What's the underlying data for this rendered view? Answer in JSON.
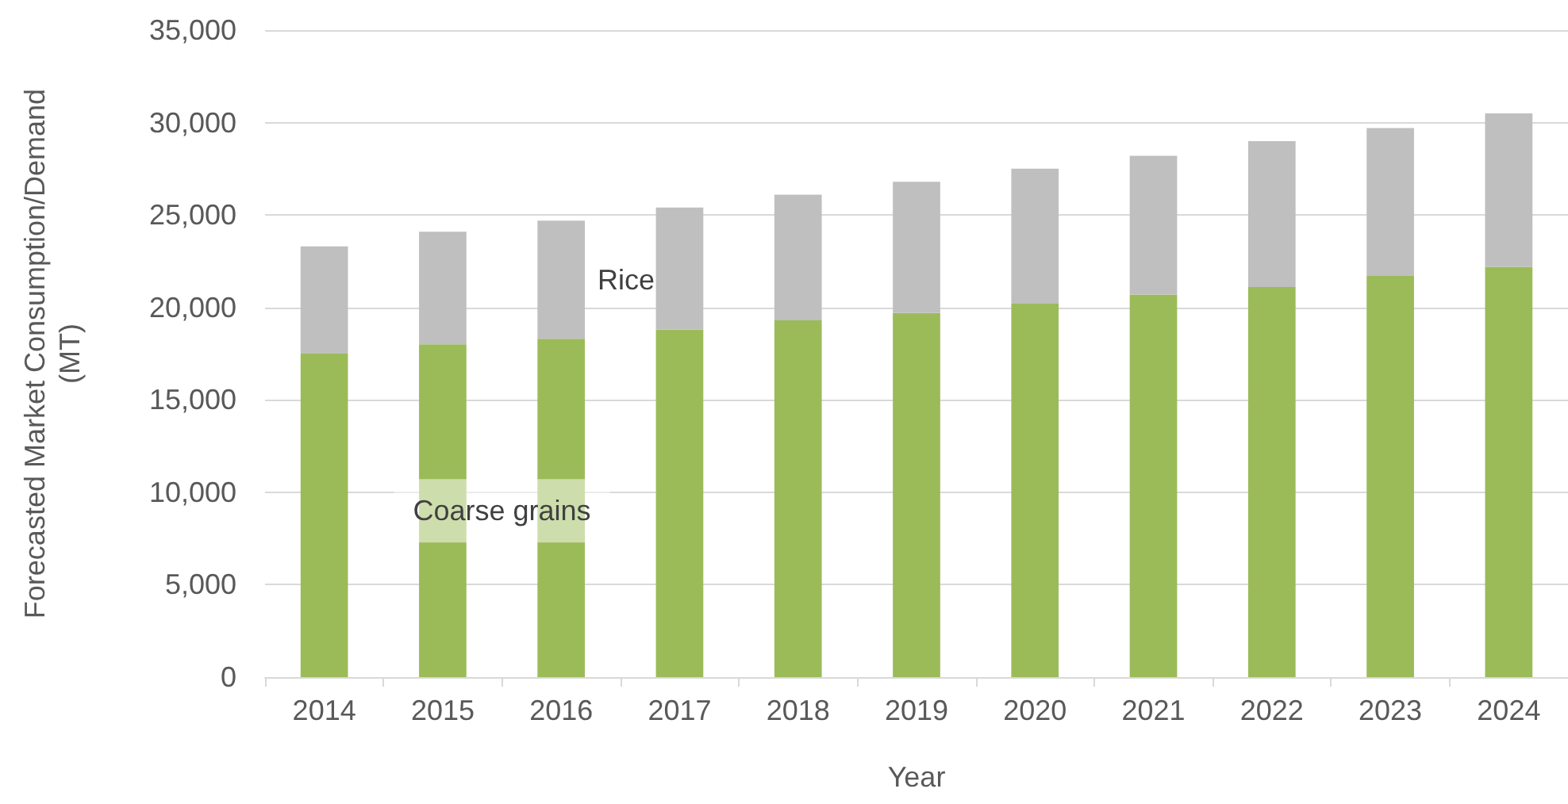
{
  "chart_data": {
    "type": "bar",
    "stacked": true,
    "xlabel": "Year",
    "ylabel": "Forecasted Market Consumption/Demand (MT)",
    "categories": [
      "2014",
      "2015",
      "2016",
      "2017",
      "2018",
      "2019",
      "2020",
      "2021",
      "2022",
      "2023",
      "2024"
    ],
    "series": [
      {
        "name": "Coarse grains",
        "color": "#9bbb59",
        "values": [
          17500,
          18000,
          18300,
          18800,
          19300,
          19700,
          20200,
          20700,
          21100,
          21700,
          22200
        ]
      },
      {
        "name": "Rice",
        "color": "#bfbfbf",
        "values": [
          5800,
          6100,
          6400,
          6600,
          6800,
          7100,
          7300,
          7500,
          7900,
          8000,
          8300
        ]
      }
    ],
    "ylim": [
      0,
      35000
    ],
    "yticks": [
      0,
      {
        "value": 5000,
        "label": "5,000"
      },
      {
        "value": 10000,
        "label": "10,000"
      },
      {
        "value": 15000,
        "label": "15,000"
      },
      {
        "value": 20000,
        "label": "20,000"
      },
      {
        "value": 25000,
        "label": "25,000"
      },
      {
        "value": 30000,
        "label": "30,000"
      },
      {
        "value": 35000,
        "label": "35,000"
      }
    ],
    "grid": "y"
  }
}
